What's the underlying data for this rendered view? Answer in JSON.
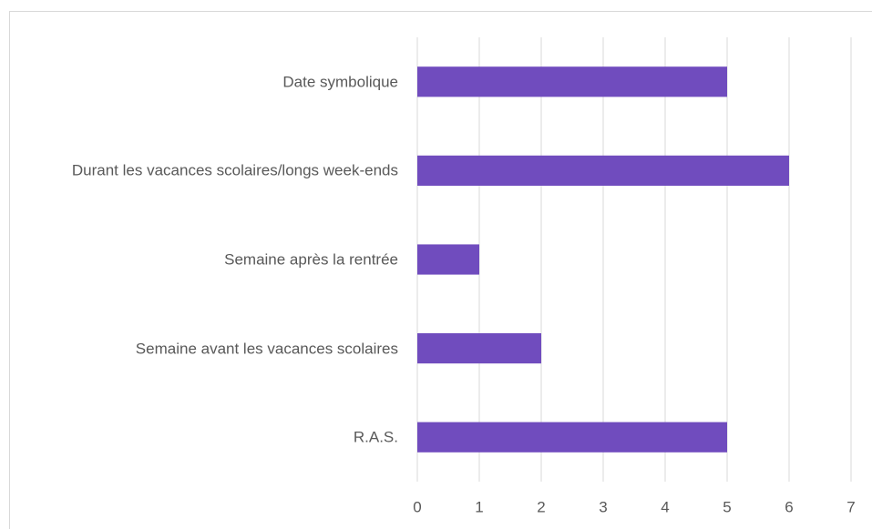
{
  "chart_data": {
    "type": "barh",
    "categories": [
      "Date symbolique",
      "Durant les vacances scolaires/longs week-ends",
      "Semaine après la rentrée",
      "Semaine avant les vacances scolaires",
      "R.A.S."
    ],
    "values": [
      5,
      6,
      1,
      2,
      5
    ],
    "color": "#704cbe",
    "xlim": [
      0,
      7
    ],
    "xticks": [
      0,
      1,
      2,
      3,
      4,
      5,
      6,
      7
    ],
    "grid": true
  }
}
